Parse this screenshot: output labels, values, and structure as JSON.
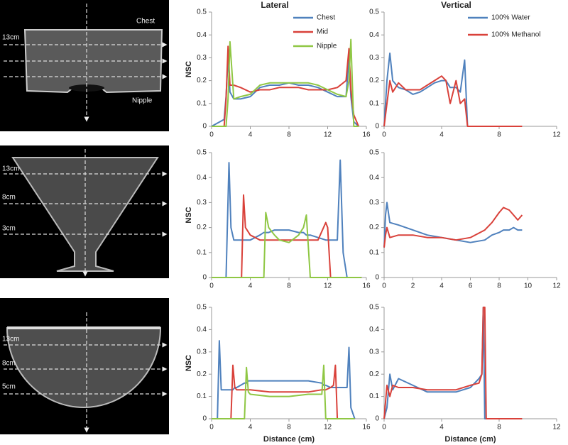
{
  "images": [
    {
      "labels": [
        "13cm",
        "Chest",
        "Nipple"
      ]
    },
    {
      "labels": [
        "13cm",
        "8cm",
        "3cm"
      ]
    },
    {
      "labels": [
        "13cm",
        "8cm",
        "5cm"
      ]
    }
  ],
  "chart_data": [
    {
      "type": "line",
      "title": "Lateral",
      "ylabel": "NSC",
      "legend": "top-right",
      "x": [
        0,
        1.3,
        1.5,
        1.7,
        1.9,
        2.3,
        3,
        4,
        5,
        6,
        7,
        8,
        9,
        10,
        11,
        12,
        13,
        13.9,
        14.2,
        14.4,
        14.7,
        15.2
      ],
      "xlim": [
        0,
        16
      ],
      "xticks": [
        0,
        4,
        8,
        12,
        16
      ],
      "ylim": [
        0,
        0.5
      ],
      "yticks": [
        0,
        0.1,
        0.2,
        0.3,
        0.4,
        0.5
      ],
      "series": [
        {
          "name": "Chest",
          "color": "#4f81bd",
          "values": [
            0,
            0.03,
            0.13,
            0.3,
            0.15,
            0.12,
            0.12,
            0.13,
            0.17,
            0.18,
            0.18,
            0.19,
            0.18,
            0.18,
            0.17,
            0.15,
            0.13,
            0.13,
            0.3,
            0.13,
            0.02,
            0
          ]
        },
        {
          "name": "Mid",
          "color": "#d9413a",
          "values": [
            0,
            0,
            0.12,
            0.35,
            0.18,
            0.18,
            0.17,
            0.15,
            0.16,
            0.16,
            0.17,
            0.17,
            0.17,
            0.16,
            0.16,
            0.16,
            0.17,
            0.2,
            0.34,
            0.16,
            0.05,
            0
          ]
        },
        {
          "name": "Nipple",
          "color": "#8fc744",
          "values": [
            0,
            0,
            0,
            0.12,
            0.37,
            0.12,
            0.13,
            0.14,
            0.18,
            0.19,
            0.19,
            0.19,
            0.19,
            0.19,
            0.18,
            0.16,
            0.14,
            0.13,
            0.2,
            0.38,
            0,
            0
          ]
        }
      ]
    },
    {
      "type": "line",
      "title": "Vertical",
      "legend": "top-right",
      "x": [
        0,
        0.2,
        0.4,
        0.6,
        1,
        1.5,
        2,
        2.5,
        3,
        3.5,
        4,
        4.3,
        4.6,
        5,
        5.3,
        5.6,
        5.8,
        6,
        7,
        8,
        9.6
      ],
      "xlim": [
        0,
        12
      ],
      "xticks": [
        0,
        4,
        8,
        12
      ],
      "ylim": [
        0,
        0.5
      ],
      "yticks": [
        0,
        0.1,
        0.2,
        0.3,
        0.4,
        0.5
      ],
      "series": [
        {
          "name": "100% Water",
          "color": "#4f81bd",
          "values": [
            0,
            0.2,
            0.32,
            0.2,
            0.17,
            0.16,
            0.14,
            0.15,
            0.17,
            0.19,
            0.2,
            0.2,
            0.17,
            0.17,
            0.15,
            0.29,
            0,
            null,
            null,
            null,
            null
          ]
        },
        {
          "name": "100% Methanol",
          "color": "#d9413a",
          "values": [
            0,
            0.1,
            0.2,
            0.15,
            0.19,
            0.16,
            0.16,
            0.16,
            0.18,
            0.2,
            0.22,
            0.2,
            0.1,
            0.2,
            0.1,
            0.12,
            0,
            0,
            0,
            0,
            0
          ]
        }
      ]
    },
    {
      "type": "line",
      "ylabel": "NSC",
      "x": [
        0,
        1.5,
        1.8,
        2,
        2.3,
        3,
        3.1,
        3.3,
        3.5,
        4,
        5,
        5.4,
        5.6,
        5.9,
        6.5,
        7,
        8,
        9,
        9.5,
        9.8,
        10.2,
        11,
        11.8,
        12,
        12.3,
        13,
        13.3,
        13.6,
        14,
        15.5
      ],
      "xlim": [
        0,
        16
      ],
      "xticks": [
        0,
        4,
        8,
        12,
        16
      ],
      "ylim": [
        0,
        0.5
      ],
      "yticks": [
        0,
        0.1,
        0.2,
        0.3,
        0.4,
        0.5
      ],
      "series": [
        {
          "color": "#4f81bd",
          "values": [
            0,
            0,
            0.46,
            0.2,
            0.15,
            0.15,
            0.15,
            0.15,
            0.15,
            0.15,
            0.17,
            0.18,
            0.18,
            0.18,
            0.19,
            0.19,
            0.19,
            0.18,
            0.18,
            0.17,
            0.17,
            0.16,
            0.15,
            0.15,
            0.15,
            0.15,
            0.47,
            0.1,
            0,
            0
          ]
        },
        {
          "color": "#d9413a",
          "values": [
            0,
            0,
            0,
            0,
            0,
            0,
            0,
            0.33,
            0.2,
            0.17,
            0.15,
            0.15,
            0.15,
            0.15,
            0.15,
            0.15,
            0.15,
            0.15,
            0.15,
            0.15,
            0.15,
            0.15,
            0.22,
            0.2,
            0,
            0,
            0,
            0,
            0,
            0
          ]
        },
        {
          "color": "#8fc744",
          "values": [
            0,
            0,
            0,
            0,
            0,
            0,
            0,
            0,
            0,
            0,
            0,
            0,
            0.26,
            0.2,
            0.17,
            0.15,
            0.14,
            0.17,
            0.2,
            0.25,
            0,
            0,
            0,
            0,
            0,
            0,
            0,
            0,
            0,
            0
          ]
        }
      ]
    },
    {
      "type": "line",
      "x": [
        0,
        0.1,
        0.2,
        0.4,
        1,
        2,
        3,
        4,
        5,
        6,
        7,
        7.5,
        8,
        8.3,
        8.7,
        9,
        9.3,
        9.6
      ],
      "xlim": [
        0,
        12
      ],
      "xticks": [
        0,
        2,
        4,
        6,
        8,
        10,
        12
      ],
      "ylim": [
        0,
        0.5
      ],
      "yticks": [
        0,
        0.1,
        0.2,
        0.3,
        0.4,
        0.5
      ],
      "series": [
        {
          "color": "#4f81bd",
          "values": [
            0.12,
            0.25,
            0.3,
            0.22,
            0.21,
            0.19,
            0.17,
            0.16,
            0.15,
            0.14,
            0.15,
            0.17,
            0.18,
            0.19,
            0.19,
            0.2,
            0.19,
            0.19
          ]
        },
        {
          "color": "#d9413a",
          "values": [
            0.12,
            0.17,
            0.2,
            0.16,
            0.17,
            0.17,
            0.16,
            0.16,
            0.15,
            0.16,
            0.19,
            0.22,
            0.26,
            0.28,
            0.27,
            0.25,
            0.23,
            0.25
          ]
        }
      ]
    },
    {
      "type": "line",
      "ylabel": "NSC",
      "xlabel": "Distance (cm)",
      "x": [
        0,
        0.6,
        0.8,
        1,
        2,
        2.2,
        2.4,
        2.6,
        3.4,
        3.6,
        3.8,
        4,
        6,
        8,
        10,
        11.4,
        11.6,
        11.8,
        12.3,
        12.6,
        12.8,
        13,
        14,
        14.2,
        14.4,
        14.8
      ],
      "xlim": [
        0,
        16
      ],
      "xticks": [
        0,
        4,
        8,
        12,
        16
      ],
      "ylim": [
        0,
        0.5
      ],
      "yticks": [
        0,
        0.1,
        0.2,
        0.3,
        0.4,
        0.5
      ],
      "series": [
        {
          "color": "#4f81bd",
          "values": [
            0,
            0,
            0.35,
            0.13,
            0.13,
            0.13,
            0.14,
            0.14,
            0.16,
            0.16,
            0.17,
            0.17,
            0.17,
            0.17,
            0.17,
            0.16,
            0.15,
            0.15,
            0.14,
            0.14,
            0.14,
            0.14,
            0.14,
            0.32,
            0.05,
            0
          ]
        },
        {
          "color": "#d9413a",
          "values": [
            0,
            0,
            0,
            0,
            0,
            0.24,
            0.14,
            0.13,
            0.13,
            0.13,
            0.13,
            0.13,
            0.12,
            0.12,
            0.12,
            0.13,
            0.13,
            0.13,
            0.14,
            0.15,
            0.24,
            0,
            0,
            0,
            0,
            0
          ]
        },
        {
          "color": "#8fc744",
          "values": [
            0,
            0,
            0,
            0,
            0,
            0,
            0,
            0,
            0,
            0.23,
            0.12,
            0.11,
            0.1,
            0.1,
            0.11,
            0.11,
            0.24,
            0,
            0,
            0,
            0,
            0,
            0,
            0,
            0,
            0
          ]
        }
      ]
    },
    {
      "type": "line",
      "xlabel": "Distance (cm)",
      "x": [
        0,
        0.2,
        0.4,
        0.6,
        1,
        2,
        3,
        4,
        5,
        6,
        6.6,
        6.8,
        6.9,
        7,
        7.1,
        7.3,
        9.6
      ],
      "xlim": [
        0,
        12
      ],
      "xticks": [
        0,
        4,
        8,
        12
      ],
      "ylim": [
        0,
        0.5
      ],
      "yticks": [
        0,
        0.1,
        0.2,
        0.3,
        0.4,
        0.5
      ],
      "series": [
        {
          "color": "#4f81bd",
          "values": [
            0,
            0.05,
            0.2,
            0.13,
            0.18,
            0.15,
            0.12,
            0.12,
            0.12,
            0.14,
            0.18,
            0.2,
            0.5,
            0,
            0,
            0,
            null
          ]
        },
        {
          "color": "#d9413a",
          "values": [
            0,
            0.15,
            0.1,
            0.15,
            0.14,
            0.14,
            0.13,
            0.13,
            0.13,
            0.15,
            0.16,
            0.2,
            0.5,
            0.5,
            0,
            0,
            0
          ]
        }
      ]
    }
  ]
}
